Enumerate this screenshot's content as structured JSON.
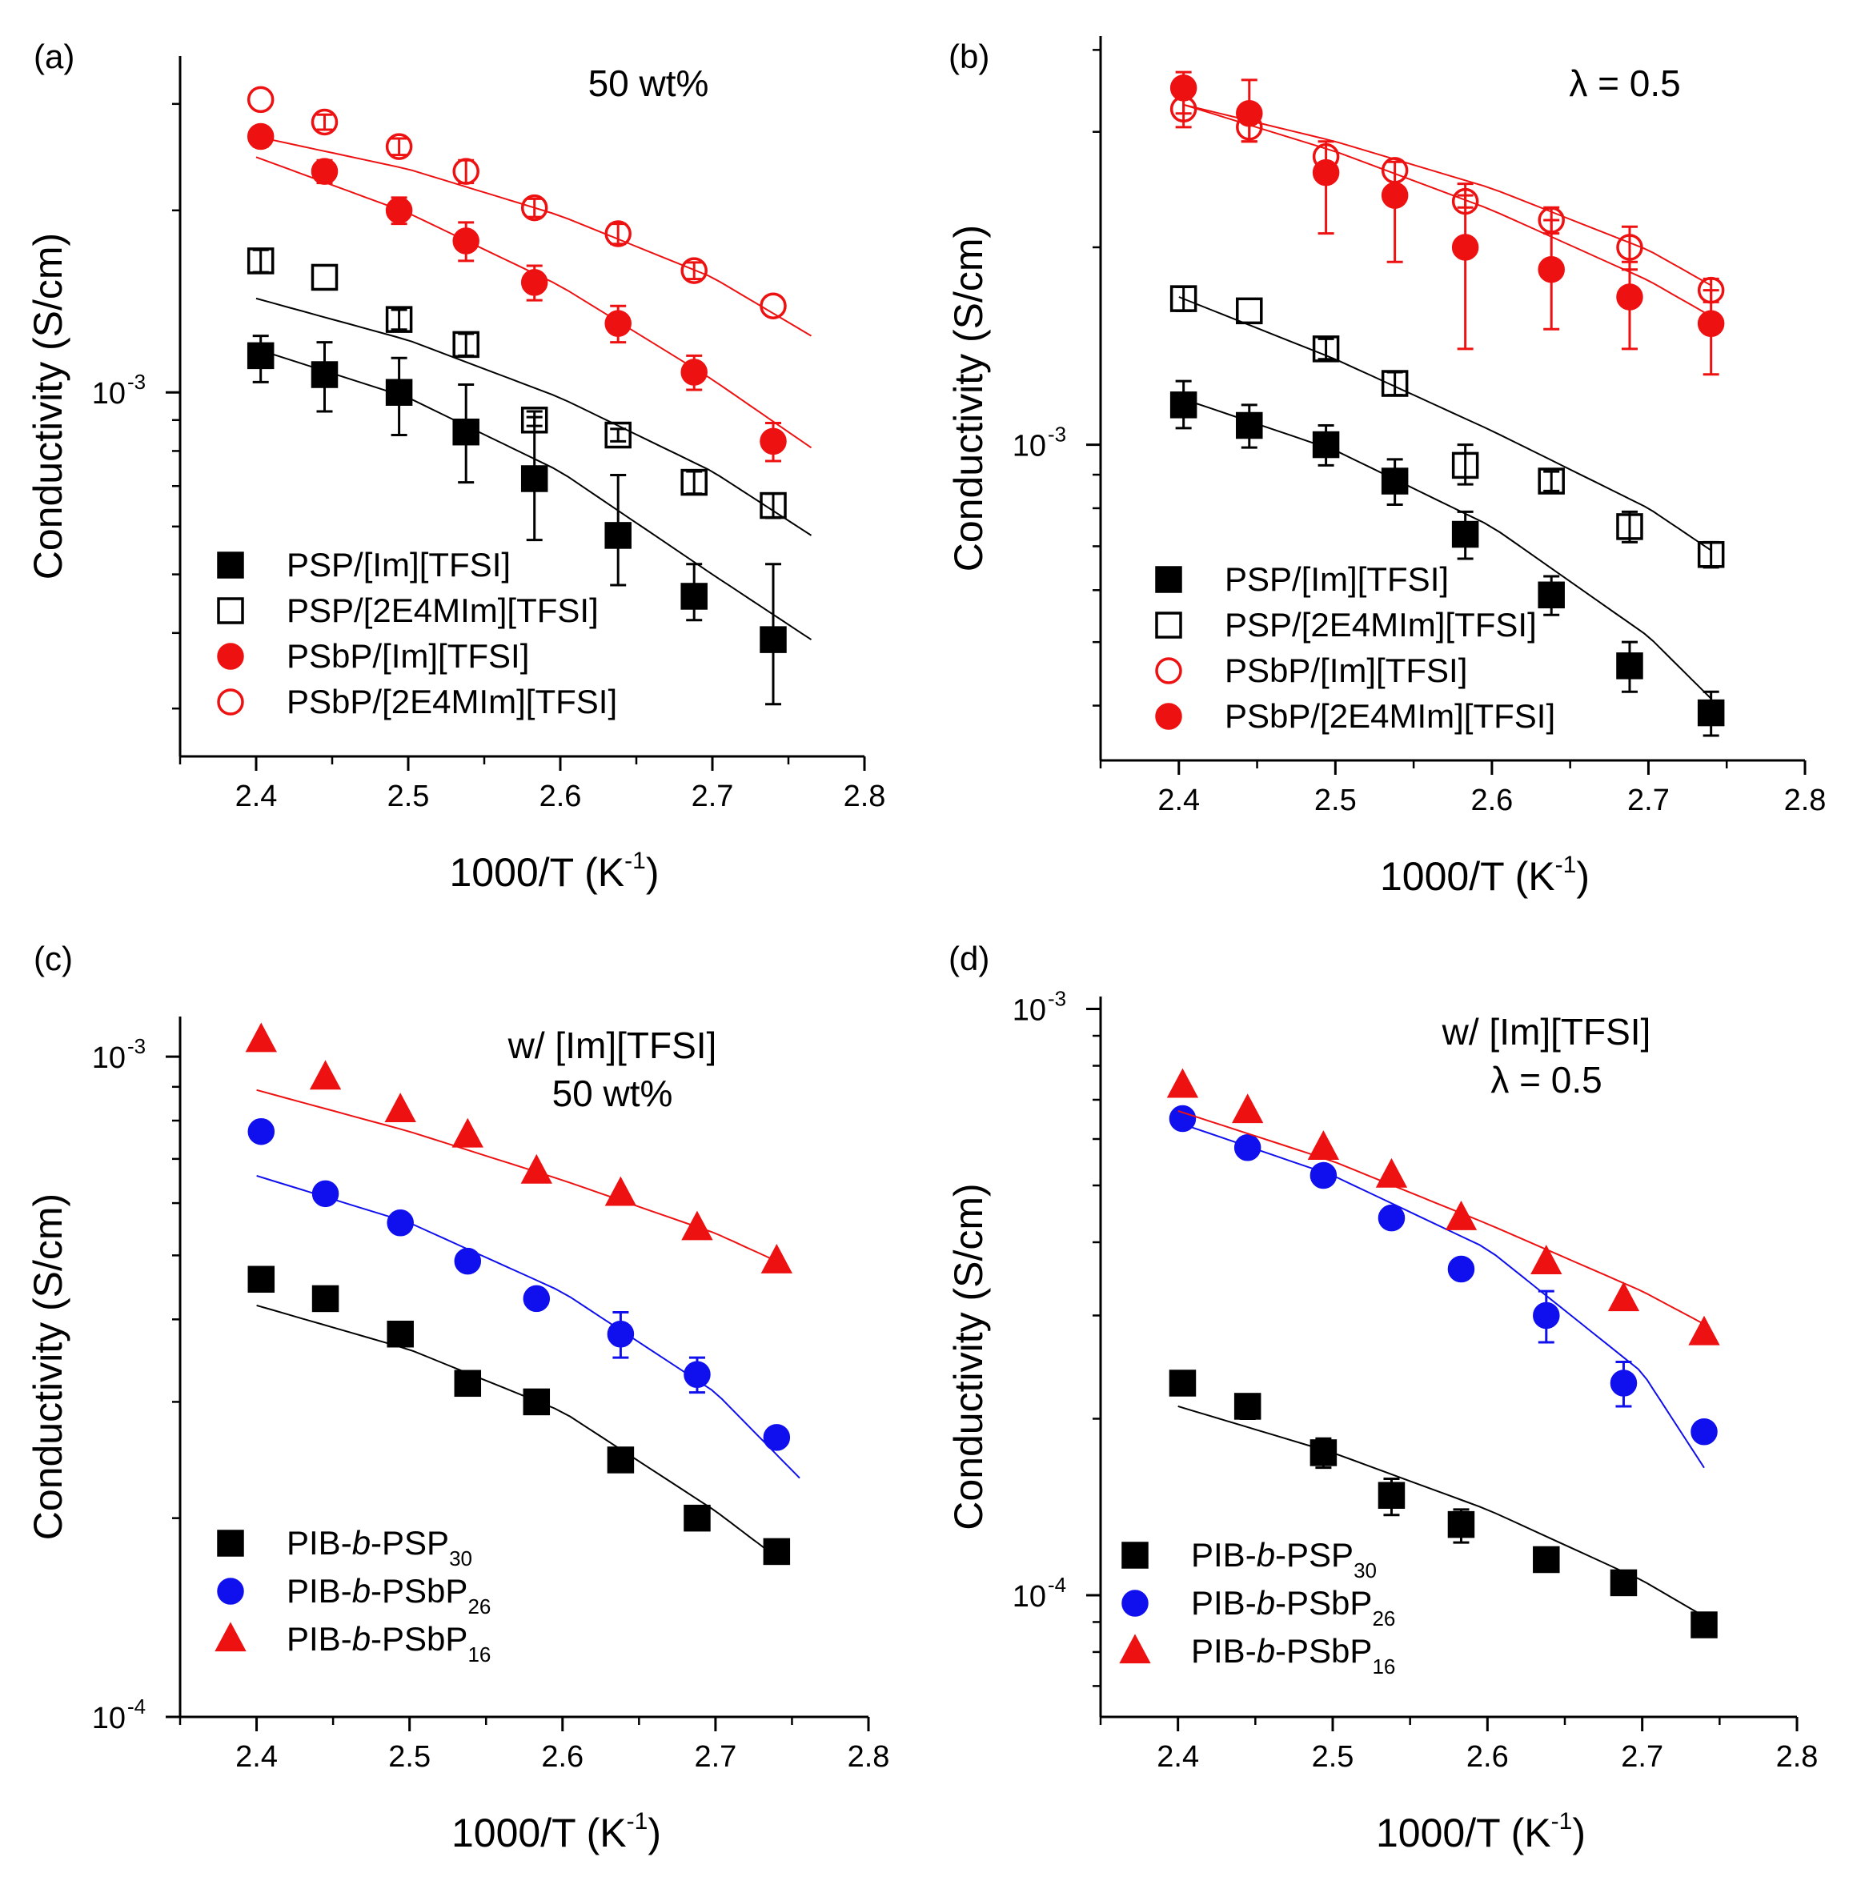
{
  "chart_data": [
    {
      "panel": "(a)",
      "type": "scatter",
      "annotation": [
        "50 wt%"
      ],
      "xlabel": "1000/T (K",
      "xlabel_sup": "-1",
      "xlabel_end": ")",
      "ylabel": "Conductivity (S/cm)",
      "xlim": [
        2.35,
        2.8
      ],
      "ylim": [
        0.00025,
        0.0036
      ],
      "yscale": "log",
      "xticks": [
        "2.4",
        "2.5",
        "2.6",
        "2.7",
        "2.8"
      ],
      "xtick_values": [
        2.4,
        2.5,
        2.6,
        2.7,
        2.8
      ],
      "yticks": [
        {
          "value": 0.001,
          "base": "10",
          "exp": "-3"
        }
      ],
      "legend": "bottom-left",
      "series": [
        {
          "name": "PSP/[Im][TFSI]",
          "marker": "square",
          "filled": true,
          "color": "#000000",
          "x": [
            2.403,
            2.445,
            2.494,
            2.538,
            2.583,
            2.638,
            2.688,
            2.74
          ],
          "y": [
            0.00115,
            0.00107,
            0.001,
            0.00086,
            0.00072,
            0.00058,
            0.00046,
            0.00039
          ],
          "err_lo": [
            0.00104,
            0.00093,
            0.00085,
            0.00071,
            0.00057,
            0.00048,
            0.00042,
            0.000305
          ],
          "err_hi": [
            0.00124,
            0.00121,
            0.00114,
            0.00103,
            0.00091,
            0.00073,
            0.00052,
            0.00052
          ],
          "fit_x": [
            2.4,
            2.5,
            2.6,
            2.7,
            2.765
          ],
          "fit_y": [
            0.00118,
            0.00098,
            0.00074,
            0.0005,
            0.00039
          ]
        },
        {
          "name": "PSP/[2E4MIm][TFSI]",
          "marker": "square",
          "filled": false,
          "color": "#000000",
          "x": [
            2.403,
            2.445,
            2.494,
            2.538,
            2.583,
            2.638,
            2.688,
            2.74
          ],
          "y": [
            0.00165,
            0.00155,
            0.00132,
            0.0012,
            0.0009,
            0.00085,
            0.00071,
            0.00065
          ],
          "err_lo": [
            0.00158,
            null,
            0.00127,
            0.00115,
            0.00088,
            0.00083,
            0.00068,
            0.00062
          ],
          "err_hi": [
            0.00172,
            null,
            0.00137,
            0.00125,
            0.00093,
            0.00087,
            0.00074,
            0.00068
          ],
          "fit_x": [
            2.4,
            2.5,
            2.6,
            2.7,
            2.765
          ],
          "fit_y": [
            0.00143,
            0.00122,
            0.00098,
            0.00074,
            0.00058
          ]
        },
        {
          "name": "PSbP/[Im][TFSI]",
          "marker": "circle",
          "filled": true,
          "color": "#ee1111",
          "x": [
            2.403,
            2.445,
            2.494,
            2.538,
            2.583,
            2.638,
            2.688,
            2.74
          ],
          "y": [
            0.00265,
            0.00232,
            0.002,
            0.00178,
            0.00152,
            0.0013,
            0.00108,
            0.00083
          ],
          "err_lo": [
            0.00255,
            0.00222,
            0.0019,
            0.00165,
            0.00142,
            0.00121,
            0.00101,
            0.00077
          ],
          "err_hi": [
            0.00275,
            0.00242,
            0.0021,
            0.00191,
            0.00162,
            0.00139,
            0.00115,
            0.00089
          ],
          "fit_x": [
            2.4,
            2.5,
            2.6,
            2.7,
            2.765
          ],
          "fit_y": [
            0.00245,
            0.00198,
            0.0015,
            0.00105,
            0.00081
          ]
        },
        {
          "name": "PSbP/[2E4MIm][TFSI]",
          "marker": "circle",
          "filled": false,
          "color": "#ee1111",
          "x": [
            2.403,
            2.445,
            2.494,
            2.538,
            2.583,
            2.638,
            2.688,
            2.74
          ],
          "y": [
            0.00305,
            0.0028,
            0.00255,
            0.00232,
            0.00202,
            0.00183,
            0.00159,
            0.00139
          ],
          "err_lo": [
            null,
            0.00272,
            0.00247,
            0.00222,
            0.00195,
            0.00176,
            0.00154,
            null
          ],
          "err_hi": [
            null,
            0.00288,
            0.00263,
            0.00242,
            0.00209,
            0.0019,
            0.00164,
            null
          ],
          "fit_x": [
            2.4,
            2.5,
            2.6,
            2.7,
            2.765
          ],
          "fit_y": [
            0.00265,
            0.00234,
            0.00196,
            0.00155,
            0.00124
          ]
        }
      ]
    },
    {
      "panel": "(b)",
      "type": "scatter",
      "annotation": [
        "λ = 0.5"
      ],
      "xlabel": "1000/T (K",
      "xlabel_sup": "-1",
      "xlabel_end": ")",
      "ylabel": "Conductivity (S/cm)",
      "xlim": [
        2.35,
        2.8
      ],
      "ylim": [
        0.00033,
        0.0042
      ],
      "yscale": "log",
      "xticks": [
        "2.4",
        "2.5",
        "2.6",
        "2.7",
        "2.8"
      ],
      "xtick_values": [
        2.4,
        2.5,
        2.6,
        2.7,
        2.8
      ],
      "yticks": [
        {
          "value": 0.001,
          "base": "10",
          "exp": "-3"
        }
      ],
      "legend": "bottom-left",
      "series": [
        {
          "name": "PSP/[Im][TFSI]",
          "marker": "square",
          "filled": true,
          "color": "#000000",
          "x": [
            2.403,
            2.445,
            2.494,
            2.538,
            2.583,
            2.638,
            2.688,
            2.74
          ],
          "y": [
            0.00115,
            0.00107,
            0.001,
            0.00088,
            0.00073,
            0.00059,
            0.00046,
            0.00039
          ],
          "err_lo": [
            0.00106,
            0.00099,
            0.00093,
            0.00081,
            0.00067,
            0.00055,
            0.00042,
            0.00036
          ],
          "err_hi": [
            0.00125,
            0.00115,
            0.00107,
            0.00095,
            0.00079,
            0.00063,
            0.0005,
            0.00042
          ],
          "fit_x": [
            2.4,
            2.5,
            2.6,
            2.7,
            2.74
          ],
          "fit_y": [
            0.00118,
            0.00098,
            0.00075,
            0.00051,
            0.00041
          ]
        },
        {
          "name": "PSP/[2E4MIm][TFSI]",
          "marker": "square",
          "filled": false,
          "color": "#000000",
          "x": [
            2.403,
            2.445,
            2.494,
            2.538,
            2.583,
            2.638,
            2.688,
            2.74
          ],
          "y": [
            0.00167,
            0.0016,
            0.0014,
            0.00124,
            0.00093,
            0.00088,
            0.00075,
            0.00068
          ],
          "err_lo": [
            0.0016,
            null,
            0.00135,
            0.00119,
            0.00087,
            0.00085,
            0.00071,
            0.00065
          ],
          "err_hi": [
            0.00174,
            null,
            0.00145,
            0.00129,
            0.001,
            0.00091,
            0.00079,
            0.00071
          ],
          "fit_x": [
            2.4,
            2.5,
            2.6,
            2.7,
            2.74
          ],
          "fit_y": [
            0.00168,
            0.00135,
            0.00105,
            0.0008,
            0.00069
          ]
        },
        {
          "name": "PSbP/[Im][TFSI]",
          "marker": "circle",
          "filled": false,
          "color": "#ee1111",
          "x": [
            2.403,
            2.445,
            2.494,
            2.538,
            2.583,
            2.638,
            2.688,
            2.74
          ],
          "y": [
            0.00325,
            0.00305,
            0.00275,
            0.00262,
            0.00235,
            0.0022,
            0.002,
            0.00172
          ],
          "err_lo": [
            0.00305,
            0.0029,
            null,
            null,
            0.0023,
            0.0021,
            0.00185,
            0.00165
          ],
          "err_hi": [
            0.00345,
            0.0032,
            null,
            null,
            0.0024,
            0.0023,
            0.00215,
            0.00179
          ],
          "fit_x": [
            2.403,
            2.5,
            2.6,
            2.7,
            2.74
          ],
          "fit_y": [
            0.0033,
            0.0029,
            0.00246,
            0.00198,
            0.00175
          ]
        },
        {
          "name": "PSbP/[2E4MIm][TFSI]",
          "marker": "circle",
          "filled": true,
          "color": "#ee1111",
          "x": [
            2.403,
            2.445,
            2.494,
            2.538,
            2.583,
            2.638,
            2.688,
            2.74
          ],
          "y": [
            0.0035,
            0.0032,
            0.0026,
            0.0024,
            0.002,
            0.00185,
            0.00168,
            0.00153
          ],
          "err_lo": [
            0.0032,
            0.0029,
            0.0021,
            0.0019,
            0.0014,
            0.0015,
            0.0014,
            0.00128
          ],
          "err_hi": [
            0.0037,
            0.0036,
            0.0029,
            0.0027,
            0.0025,
            0.0022,
            0.0019,
            0.00172
          ],
          "fit_x": [
            2.403,
            2.5,
            2.6,
            2.7,
            2.74
          ],
          "fit_y": [
            0.0033,
            0.0028,
            0.00228,
            0.00178,
            0.00157
          ]
        }
      ]
    },
    {
      "panel": "(c)",
      "type": "scatter",
      "annotation": [
        "w/ [Im][TFSI]",
        "50 wt%"
      ],
      "xlabel": "1000/T (K",
      "xlabel_sup": "-1",
      "xlabel_end": ")",
      "ylabel": "Conductivity (S/cm)",
      "xlim": [
        2.35,
        2.8
      ],
      "ylim": [
        0.0001,
        0.00115
      ],
      "yscale": "log",
      "xticks": [
        "2.4",
        "2.5",
        "2.6",
        "2.7",
        "2.8"
      ],
      "xtick_values": [
        2.4,
        2.5,
        2.6,
        2.7,
        2.8
      ],
      "yticks": [
        {
          "value": 0.001,
          "base": "10",
          "exp": "-3"
        },
        {
          "value": 0.0001,
          "base": "10",
          "exp": "-4"
        }
      ],
      "legend": "bottom-left",
      "series": [
        {
          "name": "PIB-",
          "name_italic": "b",
          "name_rest": "-PSP",
          "name_sub": "30",
          "marker": "square",
          "filled": true,
          "color": "#000000",
          "x": [
            2.403,
            2.445,
            2.494,
            2.538,
            2.583,
            2.638,
            2.688,
            2.74
          ],
          "y": [
            0.00046,
            0.00043,
            0.00038,
            0.00032,
            0.0003,
            0.000245,
            0.0002,
            0.000178
          ],
          "err_lo": [
            null,
            null,
            null,
            0.00031,
            null,
            null,
            null,
            null
          ],
          "err_hi": [
            null,
            null,
            null,
            0.00033,
            null,
            null,
            null,
            null
          ],
          "fit_x": [
            2.4,
            2.5,
            2.6,
            2.7,
            2.735
          ],
          "fit_y": [
            0.00042,
            0.00036,
            0.00029,
            0.000205,
            0.000178
          ]
        },
        {
          "name": "PIB-",
          "name_italic": "b",
          "name_rest": "-PSbP",
          "name_sub": "26",
          "marker": "circle",
          "filled": true,
          "color": "#1010ee",
          "x": [
            2.403,
            2.445,
            2.494,
            2.538,
            2.583,
            2.638,
            2.688,
            2.74
          ],
          "y": [
            0.00077,
            0.00062,
            0.00056,
            0.00049,
            0.00043,
            0.00038,
            0.00033,
            0.000265
          ],
          "err_lo": [
            null,
            null,
            null,
            null,
            null,
            0.00035,
            0.00031,
            null
          ],
          "err_hi": [
            null,
            null,
            null,
            null,
            null,
            0.00041,
            0.00035,
            null
          ],
          "fit_x": [
            2.4,
            2.5,
            2.6,
            2.7,
            2.755
          ],
          "fit_y": [
            0.00066,
            0.00056,
            0.00044,
            0.00031,
            0.00023
          ]
        },
        {
          "name": "PIB-",
          "name_italic": "b",
          "name_rest": "-PSbP",
          "name_sub": "16",
          "marker": "triangle",
          "filled": true,
          "color": "#ee1111",
          "x": [
            2.403,
            2.445,
            2.494,
            2.538,
            2.583,
            2.638,
            2.688,
            2.74
          ],
          "y": [
            0.00106,
            0.00093,
            0.00083,
            0.00076,
            0.00067,
            0.00062,
            0.00055,
            0.00049
          ],
          "err_lo": [
            null,
            null,
            null,
            null,
            null,
            null,
            null,
            null
          ],
          "err_hi": [
            null,
            null,
            null,
            null,
            null,
            null,
            null,
            null
          ],
          "fit_x": [
            2.4,
            2.5,
            2.6,
            2.7,
            2.74
          ],
          "fit_y": [
            0.00089,
            0.00077,
            0.00065,
            0.00054,
            0.00049
          ]
        }
      ]
    },
    {
      "panel": "(d)",
      "type": "scatter",
      "annotation": [
        "w/ [Im][TFSI]",
        "λ = 0.5"
      ],
      "xlabel": "1000/T (K",
      "xlabel_sup": "-1",
      "xlabel_end": ")",
      "ylabel": "Conductivity (S/cm)",
      "xlim": [
        2.35,
        2.8
      ],
      "ylim": [
        6.2e-05,
        0.00105
      ],
      "yscale": "log",
      "xticks": [
        "2.4",
        "2.5",
        "2.6",
        "2.7",
        "2.8"
      ],
      "xtick_values": [
        2.4,
        2.5,
        2.6,
        2.7,
        2.8
      ],
      "yticks": [
        {
          "value": 0.001,
          "base": "10",
          "exp": "-3"
        },
        {
          "value": 0.0001,
          "base": "10",
          "exp": "-4"
        }
      ],
      "legend": "bottom-left",
      "series": [
        {
          "name": "PIB-",
          "name_italic": "b",
          "name_rest": "-PSP",
          "name_sub": "30",
          "marker": "square",
          "filled": true,
          "color": "#000000",
          "x": [
            2.403,
            2.445,
            2.494,
            2.538,
            2.583,
            2.638,
            2.688,
            2.74
          ],
          "y": [
            0.00023,
            0.00021,
            0.000175,
            0.000148,
            0.000132,
            0.000115,
            0.000105,
            8.9e-05
          ],
          "err_lo": [
            null,
            0.0002,
            0.000165,
            0.000137,
            0.000123,
            null,
            null,
            null
          ],
          "err_hi": [
            null,
            0.000218,
            0.000185,
            0.000158,
            0.00014,
            null,
            null,
            null
          ],
          "fit_x": [
            2.4,
            2.5,
            2.6,
            2.7,
            2.74
          ],
          "fit_y": [
            0.00021,
            0.000175,
            0.00014,
            0.000106,
            9.2e-05
          ]
        },
        {
          "name": "PIB-",
          "name_italic": "b",
          "name_rest": "-PSbP",
          "name_sub": "26",
          "marker": "circle",
          "filled": true,
          "color": "#1010ee",
          "x": [
            2.403,
            2.445,
            2.494,
            2.538,
            2.583,
            2.638,
            2.688,
            2.74
          ],
          "y": [
            0.00065,
            0.00058,
            0.00052,
            0.00044,
            0.00036,
            0.0003,
            0.00023,
            0.00019
          ],
          "err_lo": [
            null,
            null,
            null,
            null,
            null,
            0.00027,
            0.00021,
            null
          ],
          "err_hi": [
            null,
            null,
            null,
            null,
            null,
            0.00033,
            0.00025,
            null
          ],
          "fit_x": [
            2.4,
            2.5,
            2.6,
            2.7,
            2.74
          ],
          "fit_y": [
            0.00064,
            0.00052,
            0.00039,
            0.00024,
            0.000165
          ]
        },
        {
          "name": "PIB-",
          "name_italic": "b",
          "name_rest": "-PSbP",
          "name_sub": "16",
          "marker": "triangle",
          "filled": true,
          "color": "#ee1111",
          "x": [
            2.403,
            2.445,
            2.494,
            2.538,
            2.583,
            2.638,
            2.688,
            2.74
          ],
          "y": [
            0.00074,
            0.00067,
            0.00058,
            0.00052,
            0.00044,
            0.00037,
            0.00032,
            0.00028
          ],
          "err_lo": [
            null,
            null,
            null,
            null,
            null,
            null,
            null,
            null
          ],
          "err_hi": [
            null,
            null,
            null,
            null,
            null,
            null,
            null,
            null
          ],
          "fit_x": [
            2.4,
            2.5,
            2.6,
            2.7,
            2.74
          ],
          "fit_y": [
            0.00067,
            0.00055,
            0.00043,
            0.00033,
            0.00029
          ]
        }
      ]
    }
  ]
}
